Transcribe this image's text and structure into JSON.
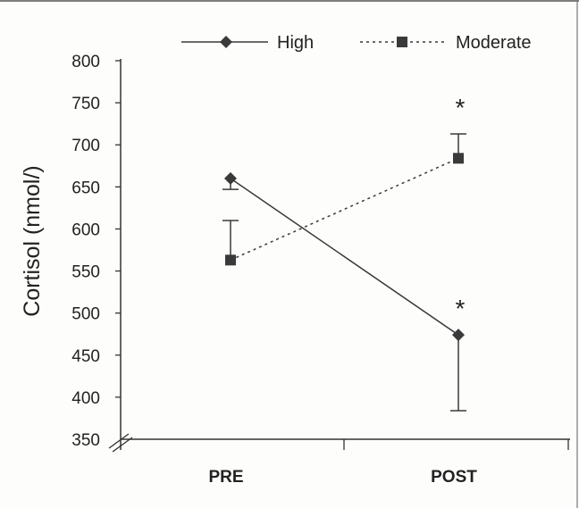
{
  "chart_data": {
    "type": "line",
    "title": "",
    "xlabel": "",
    "ylabel": "Cortisol (nmol/)",
    "categories": [
      "PRE",
      "POST"
    ],
    "ylim": [
      350,
      800
    ],
    "yticks": [
      350,
      400,
      450,
      500,
      550,
      600,
      650,
      700,
      750,
      800
    ],
    "axis_break": true,
    "legend_position": "top",
    "series": [
      {
        "name": "High",
        "values": [
          660,
          474
        ],
        "error": [
          13,
          90
        ],
        "error_direction": [
          "down",
          "down"
        ],
        "marker": "diamond",
        "line": "solid",
        "significance": [
          "",
          "*"
        ]
      },
      {
        "name": "Moderate",
        "values": [
          563,
          684
        ],
        "error": [
          47,
          29
        ],
        "error_direction": [
          "up",
          "up"
        ],
        "marker": "square",
        "line": "dotted",
        "significance": [
          "",
          "*"
        ]
      }
    ],
    "colors": {
      "line": "#3a3a3a",
      "text": "#222222",
      "axis": "#333333"
    }
  }
}
